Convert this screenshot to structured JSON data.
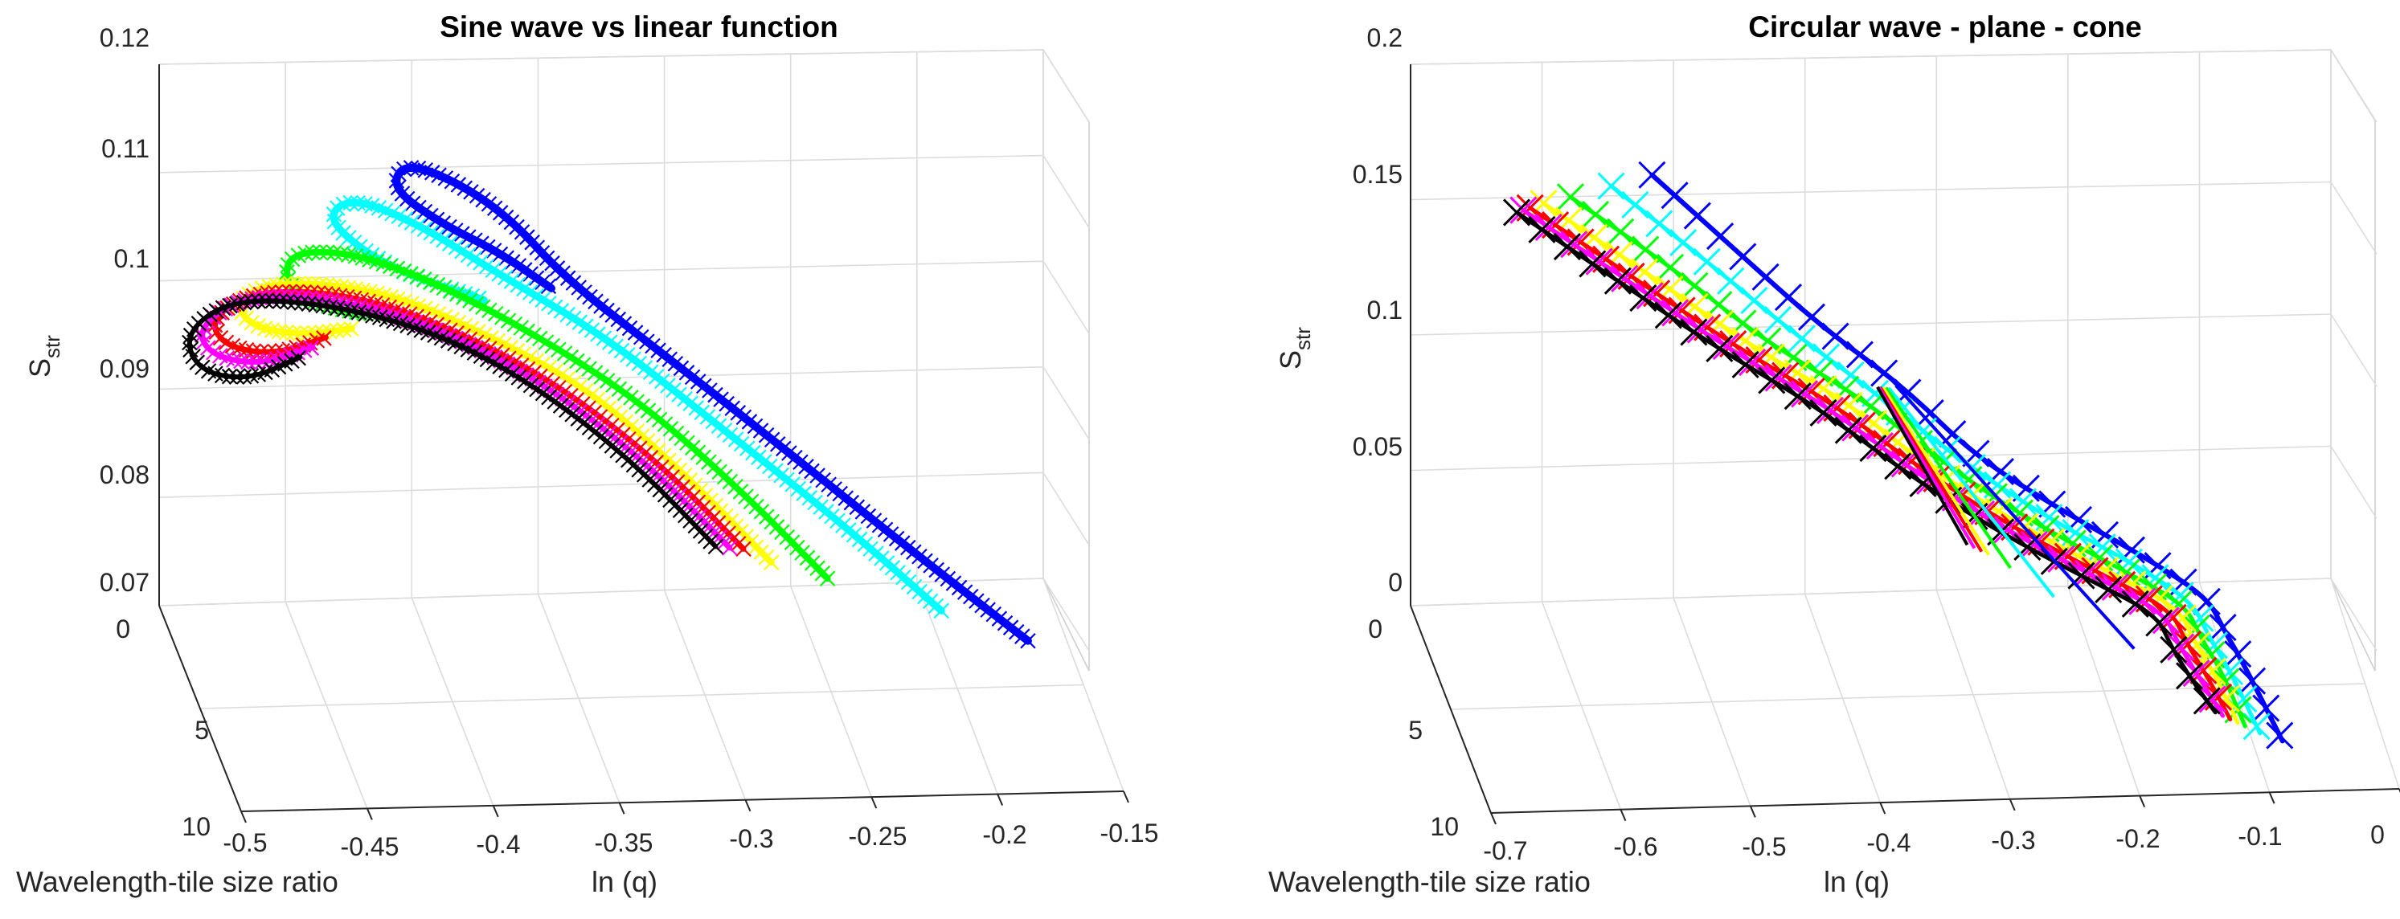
{
  "chart_data": [
    {
      "type": "line3d",
      "title": "Sine wave vs linear function",
      "xlabel": "ln (q)",
      "ylabel": "Wavelength-tile size ratio",
      "zlabel_main": "S",
      "zlabel_sub": "str",
      "x_ticks": [
        "-0.5",
        "-0.45",
        "-0.4",
        "-0.35",
        "-0.3",
        "-0.25",
        "-0.2",
        "-0.15"
      ],
      "y_ticks": [
        "0",
        "5",
        "10"
      ],
      "z_ticks": [
        "0.07",
        "0.08",
        "0.09",
        "0.1",
        "0.11",
        "0.12"
      ],
      "xlim": [
        -0.5,
        -0.15
      ],
      "ylim": [
        0,
        10
      ],
      "zlim": [
        0.07,
        0.12
      ],
      "grid": true,
      "marker": "x",
      "series": [
        {
          "name": "blue",
          "color": "#0000ff",
          "width": 10,
          "points": [
            [
              -0.18,
              0.074
            ],
            [
              -0.22,
              0.081
            ],
            [
              -0.27,
              0.09
            ],
            [
              -0.31,
              0.097
            ],
            [
              -0.345,
              0.103
            ],
            [
              -0.365,
              0.108
            ],
            [
              -0.385,
              0.111
            ],
            [
              -0.405,
              0.1125
            ],
            [
              -0.41,
              0.11
            ],
            [
              -0.39,
              0.107
            ],
            [
              -0.37,
              0.105
            ],
            [
              -0.35,
              0.102
            ]
          ]
        },
        {
          "name": "cyan",
          "color": "#00ffff",
          "width": 9,
          "points": [
            [
              -0.21,
              0.076
            ],
            [
              -0.245,
              0.083
            ],
            [
              -0.29,
              0.091
            ],
            [
              -0.33,
              0.098
            ],
            [
              -0.37,
              0.103
            ],
            [
              -0.4,
              0.107
            ],
            [
              -0.425,
              0.109
            ],
            [
              -0.435,
              0.107
            ],
            [
              -0.42,
              0.104
            ],
            [
              -0.4,
              0.102
            ],
            [
              -0.375,
              0.1005
            ]
          ]
        },
        {
          "name": "green",
          "color": "#00ff00",
          "width": 8,
          "points": [
            [
              -0.25,
              0.078
            ],
            [
              -0.28,
              0.085
            ],
            [
              -0.315,
              0.092
            ],
            [
              -0.35,
              0.097
            ],
            [
              -0.39,
              0.1015
            ],
            [
              -0.425,
              0.104
            ],
            [
              -0.45,
              0.1035
            ],
            [
              -0.45,
              0.1
            ],
            [
              -0.43,
              0.0985
            ],
            [
              -0.405,
              0.0985
            ]
          ]
        },
        {
          "name": "yellow",
          "color": "#ffff00",
          "width": 8,
          "points": [
            [
              -0.27,
              0.079
            ],
            [
              -0.3,
              0.086
            ],
            [
              -0.335,
              0.093
            ],
            [
              -0.37,
              0.097
            ],
            [
              -0.41,
              0.1005
            ],
            [
              -0.45,
              0.101
            ],
            [
              -0.47,
              0.099
            ],
            [
              -0.465,
              0.0965
            ],
            [
              -0.445,
              0.096
            ],
            [
              -0.425,
              0.097
            ]
          ]
        },
        {
          "name": "red",
          "color": "#ff0000",
          "width": 7,
          "points": [
            [
              -0.28,
              0.08
            ],
            [
              -0.31,
              0.087
            ],
            [
              -0.345,
              0.093
            ],
            [
              -0.38,
              0.097
            ],
            [
              -0.42,
              0.1
            ],
            [
              -0.46,
              0.1
            ],
            [
              -0.48,
              0.097
            ],
            [
              -0.475,
              0.0945
            ],
            [
              -0.455,
              0.094
            ],
            [
              -0.435,
              0.096
            ]
          ]
        },
        {
          "name": "magenta",
          "color": "#ff00ff",
          "width": 7,
          "points": [
            [
              -0.285,
              0.08
            ],
            [
              -0.315,
              0.087
            ],
            [
              -0.35,
              0.093
            ],
            [
              -0.385,
              0.097
            ],
            [
              -0.425,
              0.0995
            ],
            [
              -0.465,
              0.0995
            ],
            [
              -0.485,
              0.096
            ],
            [
              -0.48,
              0.0935
            ],
            [
              -0.46,
              0.093
            ],
            [
              -0.44,
              0.095
            ]
          ]
        },
        {
          "name": "black",
          "color": "#000000",
          "width": 6,
          "points": [
            [
              -0.29,
              0.08
            ],
            [
              -0.32,
              0.087
            ],
            [
              -0.355,
              0.093
            ],
            [
              -0.39,
              0.097
            ],
            [
              -0.43,
              0.099
            ],
            [
              -0.47,
              0.099
            ],
            [
              -0.49,
              0.0955
            ],
            [
              -0.485,
              0.092
            ],
            [
              -0.465,
              0.0915
            ],
            [
              -0.445,
              0.094
            ]
          ]
        }
      ]
    },
    {
      "type": "line3d",
      "title": "Circular wave - plane - cone",
      "xlabel": "ln (q)",
      "ylabel": "Wavelength-tile size ratio",
      "zlabel_main": "S",
      "zlabel_sub": "str",
      "x_ticks": [
        "-0.7",
        "-0.6",
        "-0.5",
        "-0.4",
        "-0.3",
        "-0.2",
        "-0.1",
        "0"
      ],
      "y_ticks": [
        "0",
        "5",
        "10"
      ],
      "z_ticks": [
        "0",
        "0.05",
        "0.1",
        "0.15",
        "0.2"
      ],
      "xlim": [
        -0.7,
        0
      ],
      "ylim": [
        0,
        10
      ],
      "zlim": [
        0,
        0.2
      ],
      "grid": true,
      "marker": "x",
      "series": [
        {
          "name": "blue",
          "color": "#0000ff",
          "width": 6,
          "points": [
            [
              -0.52,
              0.165
            ],
            [
              -0.46,
              0.14
            ],
            [
              -0.4,
              0.115
            ],
            [
              -0.34,
              0.095
            ],
            [
              -0.29,
              0.072
            ],
            [
              -0.23,
              0.055
            ],
            [
              -0.17,
              0.04
            ],
            [
              -0.13,
              0.028
            ],
            [
              -0.12,
              0.018
            ],
            [
              -0.105,
              0.005
            ],
            [
              -0.08,
              -0.02
            ]
          ]
        },
        {
          "name": "cyan",
          "color": "#00ffff",
          "width": 5,
          "points": [
            [
              -0.55,
              0.16
            ],
            [
              -0.48,
              0.135
            ],
            [
              -0.42,
              0.112
            ],
            [
              -0.36,
              0.092
            ],
            [
              -0.3,
              0.07
            ],
            [
              -0.24,
              0.052
            ],
            [
              -0.18,
              0.038
            ],
            [
              -0.14,
              0.026
            ],
            [
              -0.13,
              0.015
            ],
            [
              -0.115,
              0.003
            ],
            [
              -0.095,
              -0.018
            ]
          ]
        },
        {
          "name": "green",
          "color": "#00ff00",
          "width": 5,
          "points": [
            [
              -0.58,
              0.155
            ],
            [
              -0.5,
              0.13
            ],
            [
              -0.44,
              0.108
            ],
            [
              -0.37,
              0.09
            ],
            [
              -0.31,
              0.068
            ],
            [
              -0.25,
              0.05
            ],
            [
              -0.19,
              0.036
            ],
            [
              -0.145,
              0.025
            ],
            [
              -0.135,
              0.014
            ],
            [
              -0.12,
              0.002
            ],
            [
              -0.105,
              -0.016
            ]
          ]
        },
        {
          "name": "yellow",
          "color": "#ffff00",
          "width": 5,
          "points": [
            [
              -0.6,
              0.152
            ],
            [
              -0.52,
              0.128
            ],
            [
              -0.45,
              0.106
            ],
            [
              -0.38,
              0.088
            ],
            [
              -0.32,
              0.066
            ],
            [
              -0.26,
              0.049
            ],
            [
              -0.2,
              0.035
            ],
            [
              -0.15,
              0.024
            ],
            [
              -0.14,
              0.013
            ],
            [
              -0.125,
              0.001
            ],
            [
              -0.11,
              -0.015
            ]
          ]
        },
        {
          "name": "red",
          "color": "#ff0000",
          "width": 5,
          "points": [
            [
              -0.61,
              0.15
            ],
            [
              -0.53,
              0.126
            ],
            [
              -0.46,
              0.105
            ],
            [
              -0.39,
              0.087
            ],
            [
              -0.325,
              0.065
            ],
            [
              -0.265,
              0.048
            ],
            [
              -0.205,
              0.034
            ],
            [
              -0.155,
              0.023
            ],
            [
              -0.145,
              0.012
            ],
            [
              -0.13,
              0.0
            ],
            [
              -0.115,
              -0.014
            ]
          ]
        },
        {
          "name": "magenta",
          "color": "#ff00ff",
          "width": 5,
          "points": [
            [
              -0.615,
              0.149
            ],
            [
              -0.535,
              0.125
            ],
            [
              -0.465,
              0.104
            ],
            [
              -0.395,
              0.086
            ],
            [
              -0.33,
              0.064
            ],
            [
              -0.27,
              0.047
            ],
            [
              -0.21,
              0.033
            ],
            [
              -0.16,
              0.022
            ],
            [
              -0.15,
              0.011
            ],
            [
              -0.135,
              -0.001
            ],
            [
              -0.12,
              -0.013
            ]
          ]
        },
        {
          "name": "black",
          "color": "#000000",
          "width": 5,
          "points": [
            [
              -0.62,
              0.148
            ],
            [
              -0.54,
              0.124
            ],
            [
              -0.47,
              0.103
            ],
            [
              -0.4,
              0.085
            ],
            [
              -0.335,
              0.063
            ],
            [
              -0.275,
              0.046
            ],
            [
              -0.215,
              0.032
            ],
            [
              -0.165,
              0.021
            ],
            [
              -0.155,
              0.01
            ],
            [
              -0.14,
              -0.002
            ],
            [
              -0.125,
              -0.012
            ]
          ]
        }
      ],
      "cone_lines": [
        {
          "color": "#0000ff",
          "points": [
            [
              -0.345,
              0.095
            ],
            [
              -0.18,
              0.008
            ]
          ]
        },
        {
          "color": "#00ffff",
          "points": [
            [
              -0.35,
              0.094
            ],
            [
              -0.235,
              0.024
            ]
          ]
        },
        {
          "color": "#00ff00",
          "points": [
            [
              -0.352,
              0.094
            ],
            [
              -0.265,
              0.033
            ]
          ]
        },
        {
          "color": "#ffff00",
          "points": [
            [
              -0.354,
              0.094
            ],
            [
              -0.28,
              0.037
            ]
          ]
        },
        {
          "color": "#ff0000",
          "points": [
            [
              -0.356,
              0.094
            ],
            [
              -0.285,
              0.038
            ]
          ]
        },
        {
          "color": "#ff00ff",
          "points": [
            [
              -0.357,
              0.094
            ],
            [
              -0.29,
              0.039
            ]
          ]
        },
        {
          "color": "#000000",
          "points": [
            [
              -0.358,
              0.094
            ],
            [
              -0.295,
              0.04
            ]
          ]
        }
      ]
    }
  ]
}
